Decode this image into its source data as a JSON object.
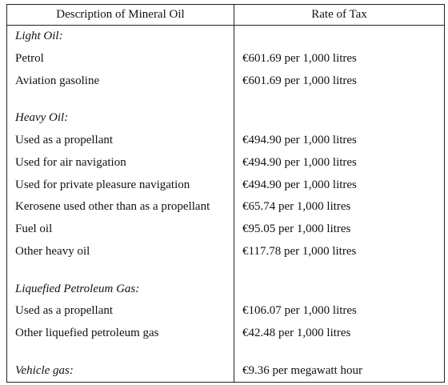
{
  "table": {
    "headers": {
      "description": "Description of Mineral Oil",
      "rate": "Rate of Tax"
    },
    "sections": [
      {
        "heading": "Light Oil:",
        "rows": [
          {
            "description": "Petrol",
            "rate": "€601.69 per 1,000 litres"
          },
          {
            "description": "Aviation gasoline",
            "rate": "€601.69 per 1,000 litres"
          }
        ]
      },
      {
        "heading": "Heavy Oil:",
        "rows": [
          {
            "description": "Used as a propellant",
            "rate": "€494.90 per 1,000 litres"
          },
          {
            "description": "Used for air navigation",
            "rate": "€494.90 per 1,000 litres"
          },
          {
            "description": "Used for private pleasure navigation",
            "rate": "€494.90 per 1,000 litres"
          },
          {
            "description": "Kerosene used other than as a propellant",
            "rate": "€65.74 per 1,000 litres"
          },
          {
            "description": "Fuel oil",
            "rate": "€95.05 per 1,000 litres"
          },
          {
            "description": "Other heavy oil",
            "rate": "€117.78 per 1,000 litres"
          }
        ]
      },
      {
        "heading": "Liquefied Petroleum Gas:",
        "rows": [
          {
            "description": "Used as a propellant",
            "rate": "€106.07 per 1,000 litres"
          },
          {
            "description": "Other liquefied petroleum gas",
            "rate": "€42.48 per 1,000 litres"
          }
        ]
      },
      {
        "heading": "Vehicle gas:",
        "heading_rate": "€9.36 per megawatt hour",
        "rows": []
      }
    ]
  }
}
